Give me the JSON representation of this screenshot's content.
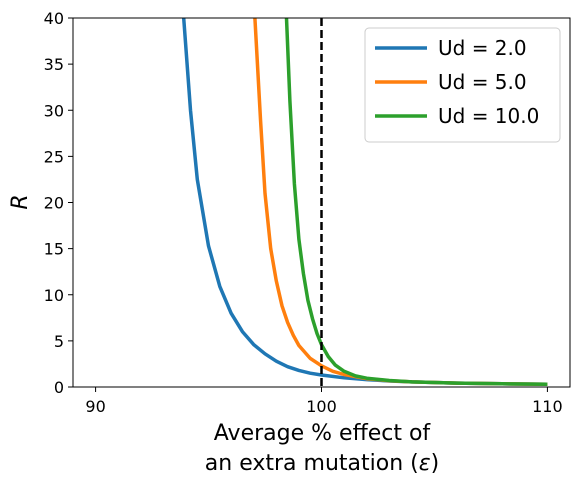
{
  "chart_data": {
    "type": "line",
    "xlabel_line1": "Average % effect of",
    "xlabel_line2_prefix": "an extra mutation (",
    "xlabel_symbol": "ε",
    "xlabel_line2_suffix": ")",
    "ylabel": "R",
    "xlim": [
      89,
      111
    ],
    "ylim": [
      0,
      40
    ],
    "xticks": [
      90,
      100,
      110
    ],
    "yticks": [
      0,
      5,
      10,
      15,
      20,
      25,
      30,
      35,
      40
    ],
    "vline": {
      "x": 100,
      "style": "dashed",
      "color": "#000000"
    },
    "grid": false,
    "legend_position": "top-right",
    "series": [
      {
        "name": "Ud = 2.0",
        "color": "#1f77b4",
        "points": [
          [
            93.9,
            40
          ],
          [
            94.2,
            30
          ],
          [
            94.5,
            22.5
          ],
          [
            95,
            15.3
          ],
          [
            95.5,
            10.9
          ],
          [
            96,
            8
          ],
          [
            96.5,
            6
          ],
          [
            97,
            4.6
          ],
          [
            97.5,
            3.6
          ],
          [
            98,
            2.8
          ],
          [
            98.5,
            2.2
          ],
          [
            99,
            1.8
          ],
          [
            99.5,
            1.5
          ],
          [
            100,
            1.3
          ],
          [
            101,
            1
          ],
          [
            102,
            0.8
          ],
          [
            103,
            0.65
          ],
          [
            104,
            0.55
          ],
          [
            106,
            0.42
          ],
          [
            108,
            0.35
          ],
          [
            110,
            0.3
          ]
        ]
      },
      {
        "name": "Ud = 5.0",
        "color": "#ff7f0e",
        "points": [
          [
            97.05,
            40
          ],
          [
            97.3,
            29
          ],
          [
            97.5,
            21
          ],
          [
            97.75,
            15
          ],
          [
            98,
            11.5
          ],
          [
            98.25,
            8.8
          ],
          [
            98.5,
            7
          ],
          [
            98.75,
            5.6
          ],
          [
            99,
            4.5
          ],
          [
            99.5,
            3.1
          ],
          [
            100,
            2.3
          ],
          [
            100.5,
            1.7
          ],
          [
            101,
            1.35
          ],
          [
            102,
            0.9
          ],
          [
            103,
            0.68
          ],
          [
            104,
            0.55
          ],
          [
            106,
            0.42
          ],
          [
            108,
            0.35
          ],
          [
            110,
            0.3
          ]
        ]
      },
      {
        "name": "Ud = 10.0",
        "color": "#2ca02c",
        "points": [
          [
            98.45,
            40
          ],
          [
            98.6,
            31
          ],
          [
            98.8,
            22
          ],
          [
            99,
            16
          ],
          [
            99.2,
            12.3
          ],
          [
            99.4,
            9.4
          ],
          [
            99.6,
            7.4
          ],
          [
            99.8,
            5.8
          ],
          [
            100,
            4.6
          ],
          [
            100.3,
            3.3
          ],
          [
            100.6,
            2.4
          ],
          [
            101,
            1.7
          ],
          [
            101.5,
            1.2
          ],
          [
            102,
            0.95
          ],
          [
            103,
            0.7
          ],
          [
            104,
            0.55
          ],
          [
            106,
            0.42
          ],
          [
            108,
            0.35
          ],
          [
            110,
            0.3
          ]
        ]
      }
    ]
  }
}
